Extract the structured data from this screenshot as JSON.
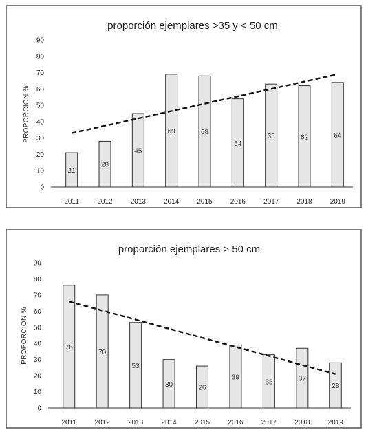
{
  "colors": {
    "bar_fill": "#e6e6e6",
    "bar_stroke": "#333333",
    "trend": "#111111"
  },
  "chart_data": [
    {
      "type": "bar",
      "title": "proporción ejemplares >35 y < 50 cm",
      "ylabel": "PROPORCION %",
      "xlabel": "",
      "categories": [
        "2011",
        "2012",
        "2013",
        "2014",
        "2015",
        "2016",
        "2017",
        "2018",
        "2019"
      ],
      "values": [
        21,
        28,
        45,
        69,
        68,
        54,
        63,
        62,
        64
      ],
      "ylim": [
        0,
        90
      ],
      "yticks": [
        "0",
        "10",
        "20",
        "30",
        "40",
        "50",
        "60",
        "70",
        "80",
        "90"
      ],
      "trendline": {
        "style": "dashed",
        "start": 33,
        "end": 69
      },
      "grid": false,
      "legend": "none"
    },
    {
      "type": "bar",
      "title": "proporción ejemplares > 50 cm",
      "ylabel": "PROPORCION %",
      "xlabel": "",
      "categories": [
        "2011",
        "2012",
        "2013",
        "2014",
        "2015",
        "2016",
        "2017",
        "2018",
        "2019"
      ],
      "values": [
        76,
        70,
        53,
        30,
        26,
        39,
        33,
        37,
        28
      ],
      "ylim": [
        0,
        90
      ],
      "yticks": [
        "0",
        "10",
        "20",
        "30",
        "40",
        "50",
        "60",
        "70",
        "80",
        "90"
      ],
      "trendline": {
        "style": "dashed",
        "start": 66,
        "end": 21
      },
      "grid": false,
      "legend": "none"
    }
  ]
}
